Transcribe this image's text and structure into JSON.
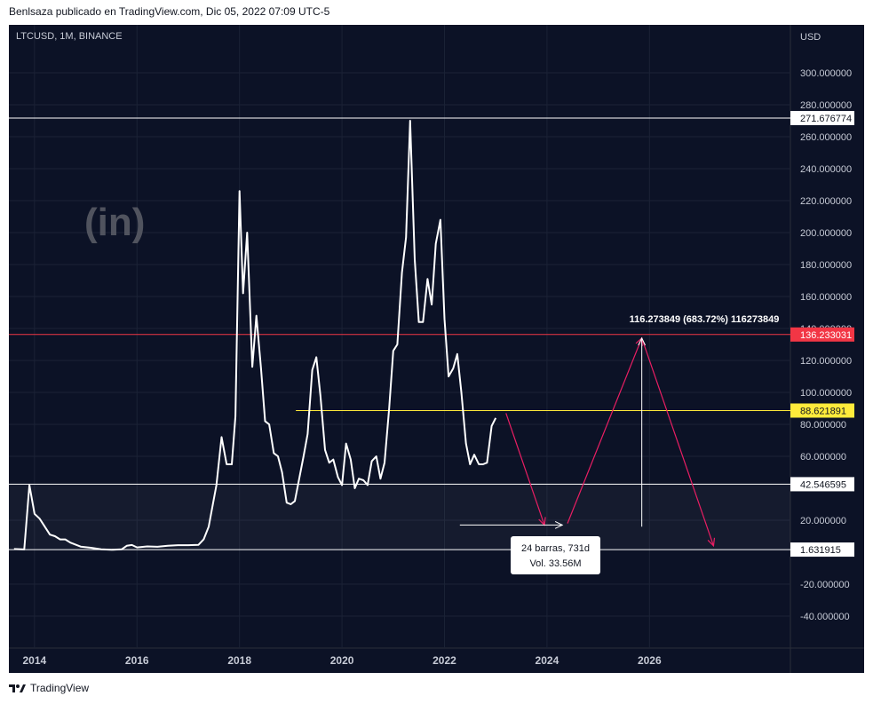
{
  "header": {
    "published_by": "Benlsaza publicado en TradingView.com, Dic 05, 2022 07:09 UTC-5"
  },
  "symbol_info": "LTCUSD, 1M, BINANCE",
  "axis": {
    "currency_label": "USD"
  },
  "watermark": "(in)",
  "footer": {
    "brand": "TradingView"
  },
  "colors": {
    "background": "#0c1226",
    "line": "#ffffff",
    "target_line": "#f23645",
    "mid_line": "#ffeb3b",
    "arrow": "#e91e63"
  },
  "chart_data": {
    "type": "line",
    "title": "LTCUSD, 1M, BINANCE",
    "xlabel": "",
    "ylabel": "USD",
    "ylim": [
      -60,
      330
    ],
    "xlim": [
      2013.5,
      2028.75
    ],
    "grid": true,
    "x_ticks": [
      "2014",
      "2016",
      "2018",
      "2020",
      "2022",
      "2024",
      "2026"
    ],
    "y_ticks": [
      "300.000000",
      "280.000000",
      "260.000000",
      "240.000000",
      "220.000000",
      "200.000000",
      "180.000000",
      "160.000000",
      "140.000000",
      "120.000000",
      "100.000000",
      "80.000000",
      "60.000000",
      "20.000000",
      "-20.000000",
      "-40.000000"
    ],
    "series": [
      {
        "points": [
          [
            2013.6,
            2.0
          ],
          [
            2013.8,
            1.7
          ],
          [
            2013.9,
            42.0
          ],
          [
            2014.0,
            24.0
          ],
          [
            2014.1,
            21.0
          ],
          [
            2014.3,
            11.0
          ],
          [
            2014.4,
            10.0
          ],
          [
            2014.5,
            8.0
          ],
          [
            2014.6,
            8.0
          ],
          [
            2014.7,
            6.0
          ],
          [
            2014.9,
            3.5
          ],
          [
            2015.1,
            2.8
          ],
          [
            2015.3,
            1.8
          ],
          [
            2015.5,
            1.5
          ],
          [
            2015.7,
            1.8
          ],
          [
            2015.8,
            4.0
          ],
          [
            2015.9,
            4.5
          ],
          [
            2016.0,
            3.0
          ],
          [
            2016.2,
            3.6
          ],
          [
            2016.4,
            3.4
          ],
          [
            2016.6,
            4.0
          ],
          [
            2016.8,
            4.4
          ],
          [
            2017.0,
            4.4
          ],
          [
            2017.2,
            4.6
          ],
          [
            2017.3,
            8.0
          ],
          [
            2017.4,
            16.0
          ],
          [
            2017.55,
            42.0
          ],
          [
            2017.65,
            72.0
          ],
          [
            2017.75,
            55.0
          ],
          [
            2017.85,
            55.0
          ],
          [
            2017.92,
            85.0
          ],
          [
            2018.0,
            226.0
          ],
          [
            2018.07,
            162.0
          ],
          [
            2018.15,
            200.0
          ],
          [
            2018.25,
            116.0
          ],
          [
            2018.33,
            148.0
          ],
          [
            2018.42,
            115.0
          ],
          [
            2018.5,
            82.0
          ],
          [
            2018.58,
            80.0
          ],
          [
            2018.67,
            62.0
          ],
          [
            2018.75,
            60.0
          ],
          [
            2018.83,
            50.0
          ],
          [
            2018.92,
            31.0
          ],
          [
            2019.0,
            30.0
          ],
          [
            2019.08,
            32.0
          ],
          [
            2019.25,
            60.0
          ],
          [
            2019.33,
            74.0
          ],
          [
            2019.42,
            114.0
          ],
          [
            2019.5,
            122.0
          ],
          [
            2019.58,
            98.0
          ],
          [
            2019.67,
            64.0
          ],
          [
            2019.75,
            56.0
          ],
          [
            2019.83,
            58.0
          ],
          [
            2019.92,
            47.0
          ],
          [
            2020.0,
            42.0
          ],
          [
            2020.08,
            68.0
          ],
          [
            2020.17,
            58.0
          ],
          [
            2020.25,
            40.0
          ],
          [
            2020.33,
            46.0
          ],
          [
            2020.42,
            45.0
          ],
          [
            2020.5,
            42.0
          ],
          [
            2020.58,
            57.0
          ],
          [
            2020.67,
            60.0
          ],
          [
            2020.75,
            46.0
          ],
          [
            2020.83,
            56.0
          ],
          [
            2020.92,
            90.0
          ],
          [
            2021.0,
            126.0
          ],
          [
            2021.08,
            130.0
          ],
          [
            2021.17,
            175.0
          ],
          [
            2021.25,
            197.0
          ],
          [
            2021.33,
            270.0
          ],
          [
            2021.42,
            183.0
          ],
          [
            2021.5,
            144.0
          ],
          [
            2021.58,
            144.0
          ],
          [
            2021.67,
            171.0
          ],
          [
            2021.75,
            155.0
          ],
          [
            2021.83,
            193.0
          ],
          [
            2021.92,
            208.0
          ],
          [
            2022.0,
            146.0
          ],
          [
            2022.08,
            110.0
          ],
          [
            2022.17,
            115.0
          ],
          [
            2022.25,
            124.0
          ],
          [
            2022.33,
            100.0
          ],
          [
            2022.42,
            68.0
          ],
          [
            2022.5,
            55.0
          ],
          [
            2022.58,
            61.0
          ],
          [
            2022.67,
            55.0
          ],
          [
            2022.75,
            55.0
          ],
          [
            2022.83,
            56.0
          ],
          [
            2022.92,
            79.0
          ],
          [
            2023.0,
            84.0
          ]
        ]
      }
    ],
    "horizontal_lines": [
      {
        "label": "271.676774",
        "value": 271.676774,
        "style": "white"
      },
      {
        "label": "136.233031",
        "value": 136.233031,
        "style": "red"
      },
      {
        "label": "88.621891",
        "value": 88.621891,
        "style": "yellow"
      },
      {
        "label": "42.546595",
        "value": 42.546595,
        "style": "white"
      },
      {
        "label": "1.631915",
        "value": 1.631915,
        "style": "white"
      }
    ],
    "yellow_line_start_x": 2019.1,
    "projection_arrows": [
      {
        "from": [
          2023.2,
          87.0
        ],
        "to": [
          2023.95,
          17.0
        ]
      },
      {
        "from": [
          2024.4,
          18.0
        ],
        "to": [
          2025.85,
          134.0
        ]
      },
      {
        "from": [
          2025.85,
          134.0
        ],
        "to": [
          2027.25,
          4.0
        ]
      }
    ],
    "time_range_arrow": {
      "from": [
        2022.3,
        17.0
      ],
      "to": [
        2024.3,
        17.0
      ]
    },
    "price_range_arrow": {
      "from": [
        2025.85,
        16.0
      ],
      "to": [
        2025.85,
        134.0
      ]
    },
    "annotations": {
      "price_range_label": "116.273849 (683.72%) 116273849",
      "time_range_box_line1": "24 barras, 731d",
      "time_range_box_line2": "Vol. 33.56M"
    }
  }
}
